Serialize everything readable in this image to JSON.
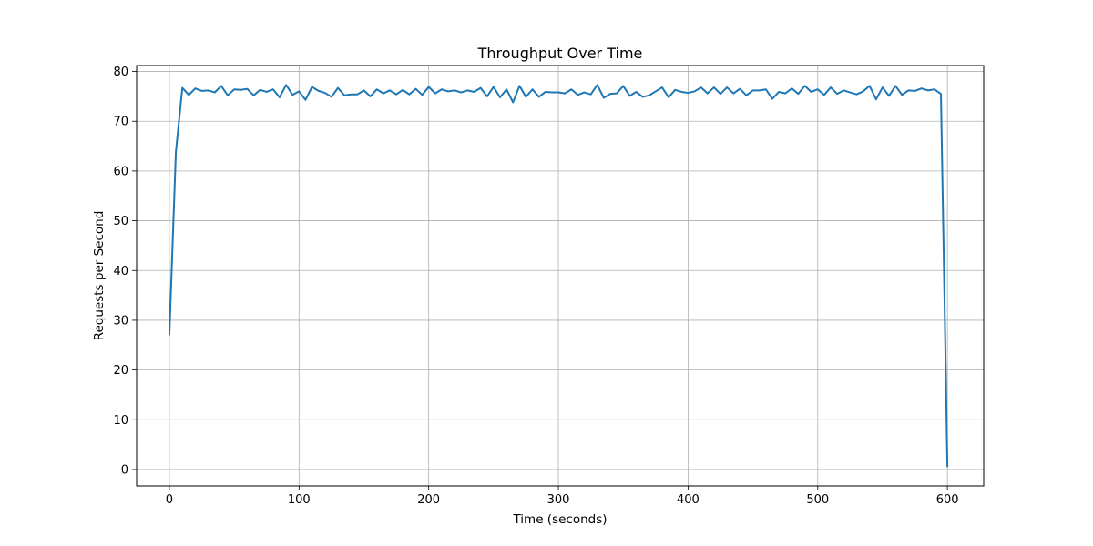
{
  "chart_data": {
    "type": "line",
    "title": "Throughput Over Time",
    "xlabel": "Time (seconds)",
    "ylabel": "Requests per Second",
    "xlim": [
      -25.25,
      628
    ],
    "ylim": [
      -3.3,
      81.2
    ],
    "xticks": [
      0,
      100,
      200,
      300,
      400,
      500,
      600
    ],
    "yticks": [
      0,
      10,
      20,
      30,
      40,
      50,
      60,
      70,
      80
    ],
    "xtick_labels": [
      "0",
      "100",
      "200",
      "300",
      "400",
      "500",
      "600"
    ],
    "ytick_labels": [
      "0",
      "10",
      "20",
      "30",
      "40",
      "50",
      "60",
      "70",
      "80"
    ],
    "grid": true,
    "legend": "none",
    "line_color": "#1f77b4",
    "grid_color": "#b0b0b0",
    "series": [
      {
        "x": [
          0,
          5,
          10,
          15,
          20,
          25,
          30,
          35,
          40,
          45,
          50,
          55,
          60,
          65,
          70,
          75,
          80,
          85,
          90,
          95,
          100,
          105,
          110,
          115,
          120,
          125,
          130,
          135,
          140,
          145,
          150,
          155,
          160,
          165,
          170,
          175,
          180,
          185,
          190,
          195,
          200,
          205,
          210,
          215,
          220,
          225,
          230,
          235,
          240,
          245,
          250,
          255,
          260,
          265,
          270,
          275,
          280,
          285,
          290,
          295,
          300,
          305,
          310,
          315,
          320,
          325,
          330,
          335,
          340,
          345,
          350,
          355,
          360,
          365,
          370,
          375,
          380,
          385,
          390,
          395,
          400,
          405,
          410,
          415,
          420,
          425,
          430,
          435,
          440,
          445,
          450,
          455,
          460,
          465,
          470,
          475,
          480,
          485,
          490,
          495,
          500,
          505,
          510,
          515,
          520,
          525,
          530,
          535,
          540,
          545,
          550,
          555,
          560,
          565,
          570,
          575,
          580,
          585,
          590,
          595,
          600
        ],
        "values": [
          27,
          63.8,
          76.7,
          75.3,
          76.6,
          76.1,
          76.2,
          75.8,
          77.1,
          75.2,
          76.4,
          76.3,
          76.5,
          75.2,
          76.3,
          75.9,
          76.4,
          74.8,
          77.3,
          75.3,
          76.0,
          74.3,
          76.9,
          76.1,
          75.7,
          74.9,
          76.7,
          75.2,
          75.4,
          75.4,
          76.2,
          75.0,
          76.4,
          75.6,
          76.2,
          75.4,
          76.3,
          75.4,
          76.5,
          75.3,
          76.9,
          75.6,
          76.4,
          76.0,
          76.2,
          75.8,
          76.2,
          75.9,
          76.7,
          75.0,
          76.9,
          74.8,
          76.4,
          73.8,
          77.1,
          74.9,
          76.4,
          74.9,
          75.9,
          75.8,
          75.8,
          75.6,
          76.4,
          75.3,
          75.8,
          75.4,
          77.3,
          74.7,
          75.5,
          75.6,
          77.1,
          75.1,
          75.9,
          74.9,
          75.2,
          76.0,
          76.8,
          74.8,
          76.3,
          75.9,
          75.7,
          76.0,
          76.8,
          75.6,
          76.8,
          75.5,
          76.8,
          75.6,
          76.5,
          75.2,
          76.2,
          76.2,
          76.4,
          74.5,
          75.9,
          75.6,
          76.6,
          75.5,
          77.1,
          75.9,
          76.4,
          75.3,
          76.8,
          75.5,
          76.2,
          75.8,
          75.4,
          76.0,
          77.1,
          74.4,
          76.8,
          75.1,
          77.1,
          75.3,
          76.2,
          76.1,
          76.6,
          76.2,
          76.4,
          75.5,
          0.5
        ]
      }
    ]
  }
}
